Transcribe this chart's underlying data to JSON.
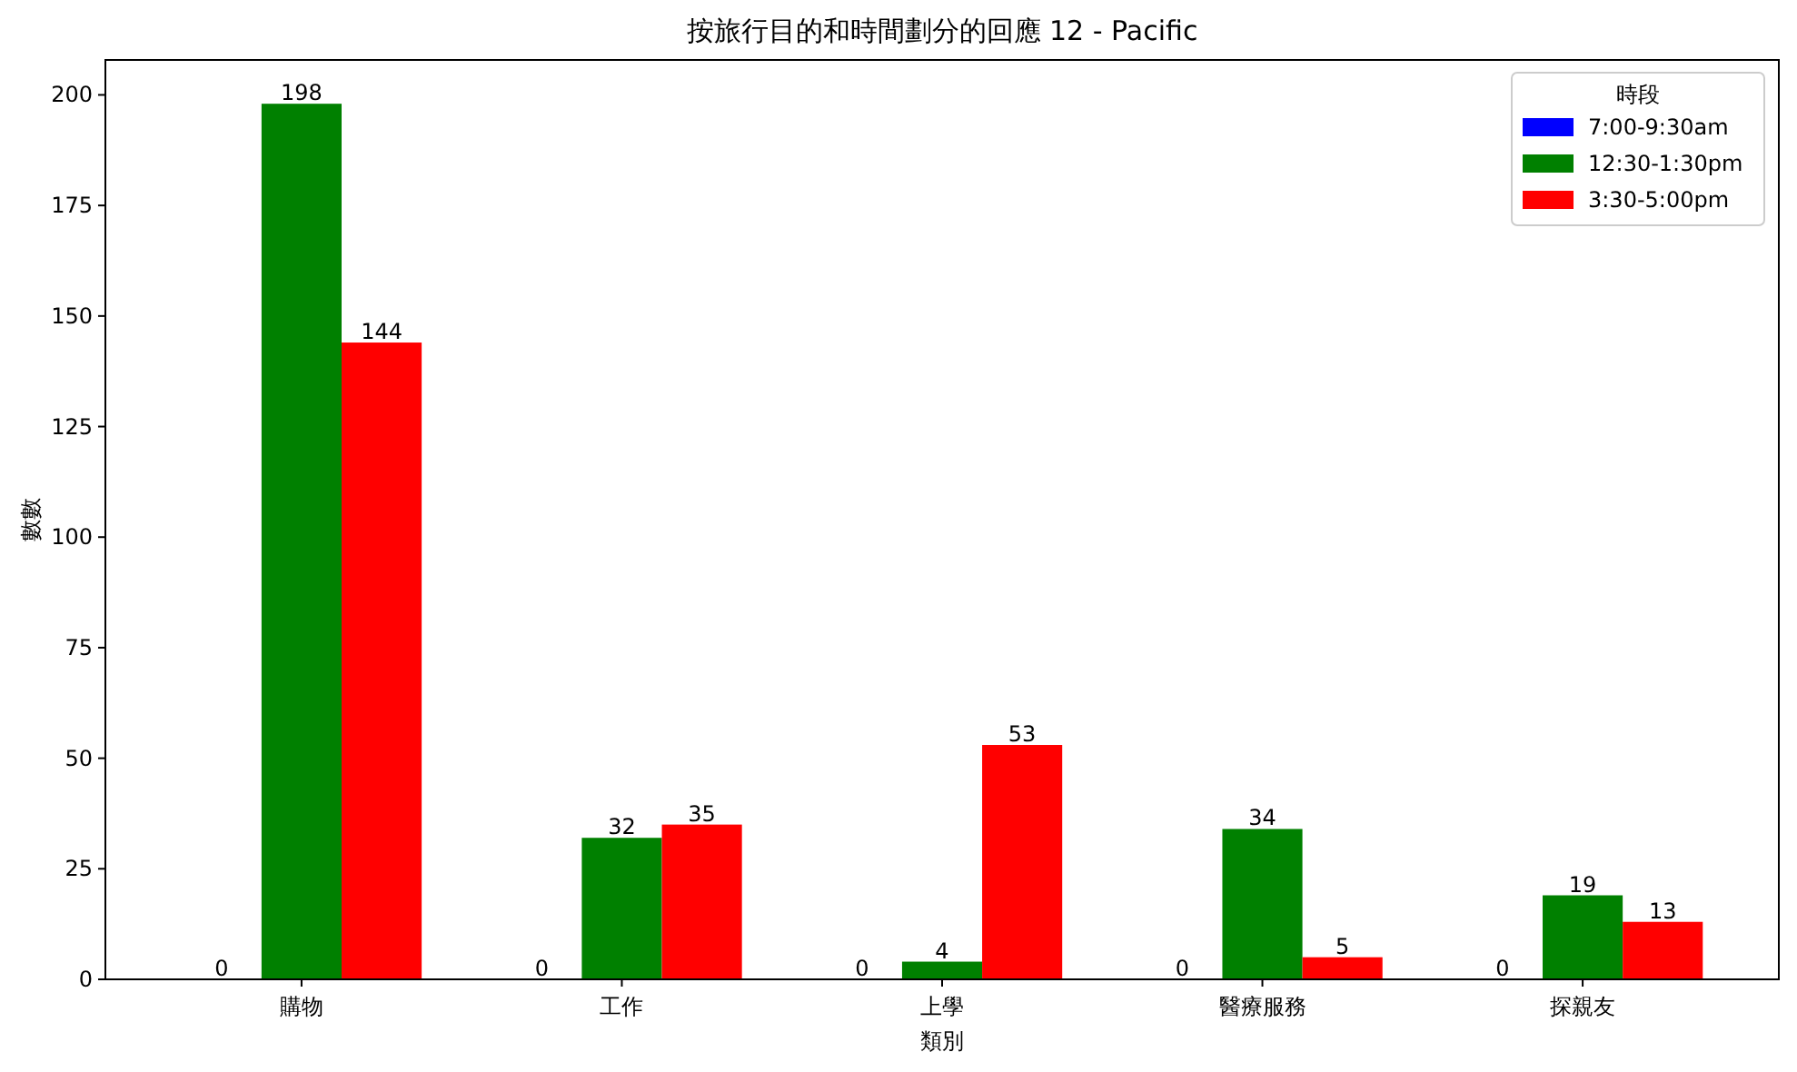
{
  "chart_data": {
    "type": "bar",
    "title": "按旅行目的和時間劃分的回應 12 - Pacific",
    "xlabel": "類別",
    "ylabel": "數數",
    "legend_title": "時段",
    "categories": [
      "購物",
      "工作",
      "上學",
      "醫療服務",
      "探親友"
    ],
    "series": [
      {
        "name": "7:00-9:30am",
        "color": "#0000ff",
        "values": [
          0,
          0,
          0,
          0,
          0
        ]
      },
      {
        "name": "12:30-1:30pm",
        "color": "#008000",
        "values": [
          198,
          32,
          4,
          34,
          19
        ]
      },
      {
        "name": "3:30-5:00pm",
        "color": "#ff0000",
        "values": [
          144,
          35,
          53,
          5,
          13
        ]
      }
    ],
    "ylim": [
      0,
      207.9
    ],
    "yticks": [
      0,
      25,
      50,
      75,
      100,
      125,
      150,
      175,
      200
    ],
    "data_labels": true,
    "legend": "top right"
  }
}
